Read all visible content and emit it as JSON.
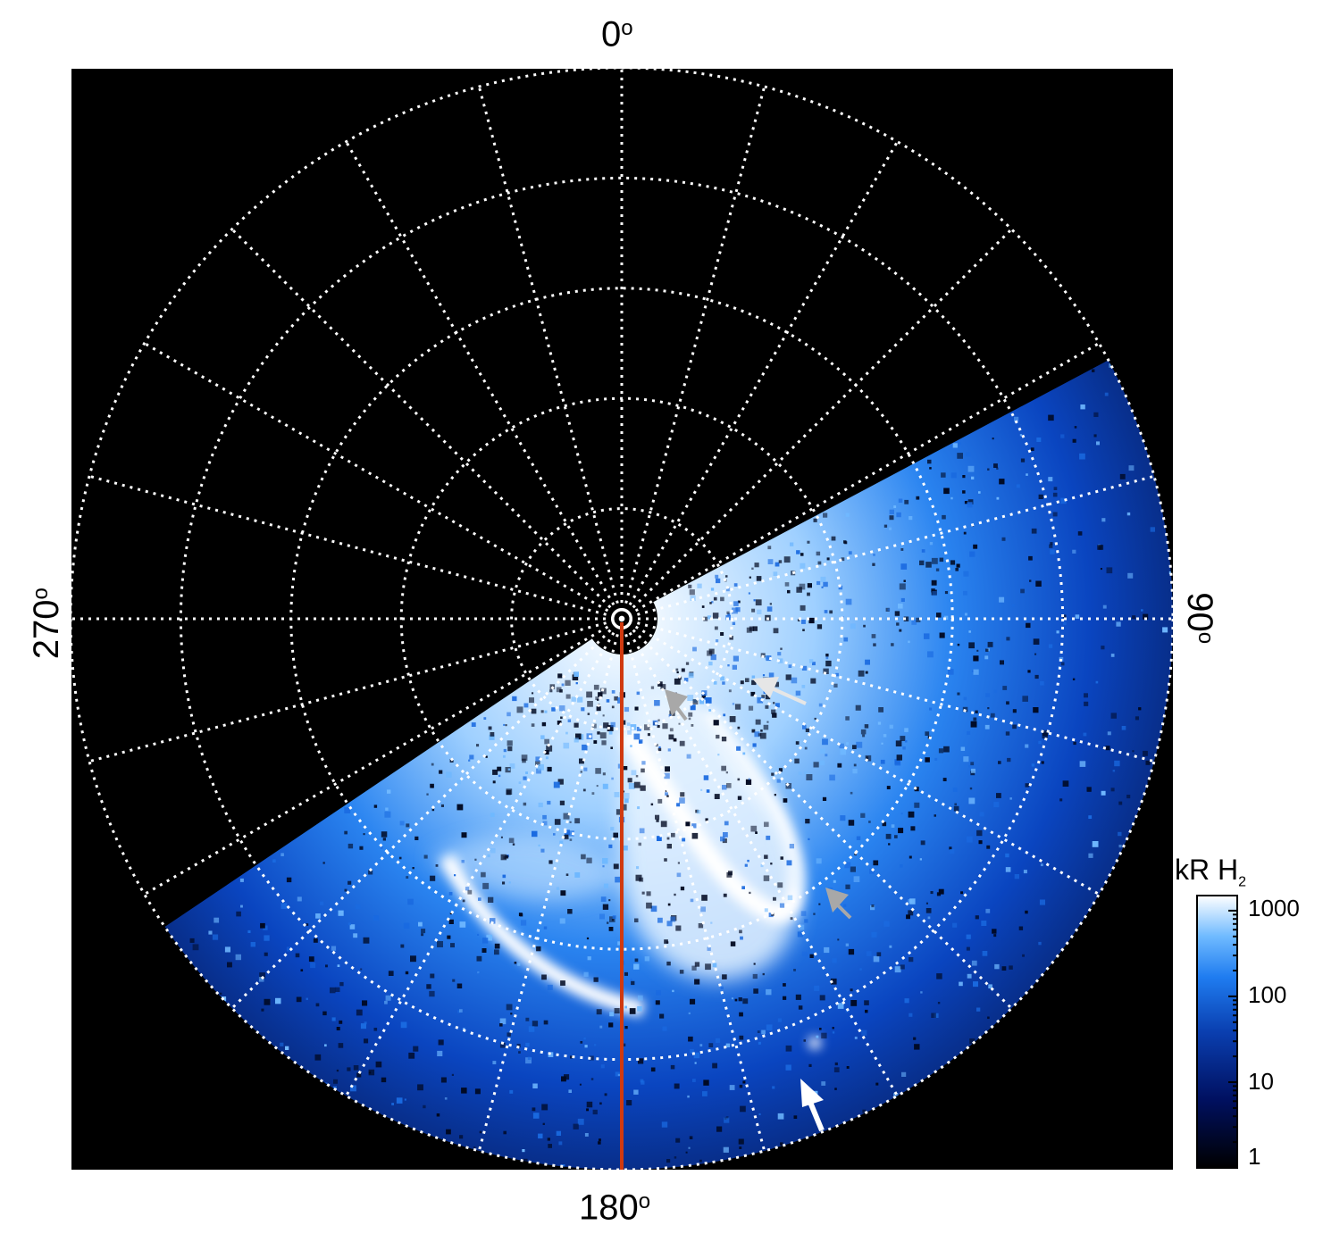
{
  "axis_labels": {
    "top": "0",
    "right": "90",
    "bottom": "180",
    "left": "270",
    "degree_symbol": "o"
  },
  "colorbar": {
    "title": "kR H",
    "title_subscript": "2",
    "scale": "log",
    "ticks": [
      "1000",
      "100",
      "10",
      "1"
    ],
    "tick_values": [
      1000,
      100,
      10,
      1
    ],
    "range": [
      1,
      1500
    ]
  },
  "colors": {
    "background": "#000000",
    "grid": "#ffffff",
    "meridian_line": "#d03a10",
    "aurora_low": "#0a3fb0",
    "aurora_mid": "#2a8cff",
    "aurora_high": "#ffffff",
    "arrow_grey": "#a8a8a8",
    "arrow_white": "#ffffff"
  },
  "grid": {
    "meridian_spacing_deg": 15,
    "ring_count": 5,
    "style": "dotted"
  },
  "annotations": [
    {
      "name": "white-arrow-upper",
      "color": "white"
    },
    {
      "name": "grey-arrow-upper",
      "color": "grey"
    },
    {
      "name": "grey-arrow-lower",
      "color": "grey"
    },
    {
      "name": "white-arrow-lower",
      "color": "white"
    }
  ]
}
